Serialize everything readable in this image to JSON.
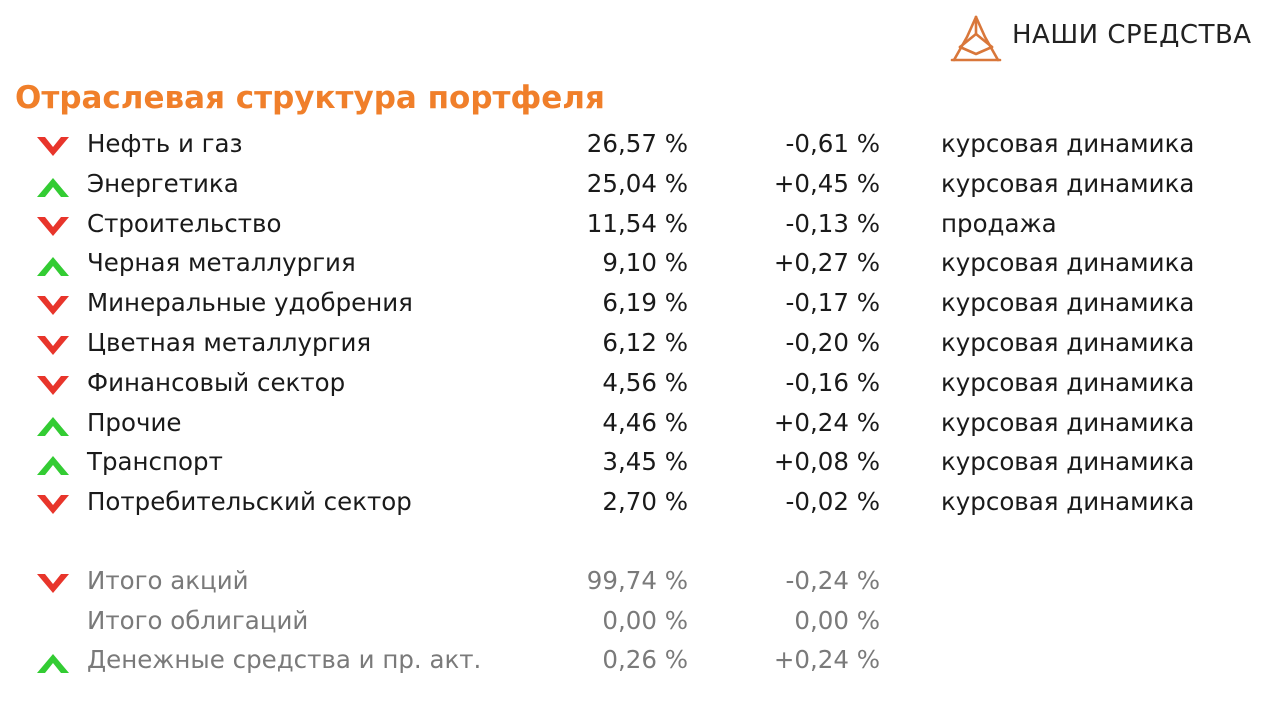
{
  "header": {
    "brand": "НАШИ СРЕДСТВА"
  },
  "title": "Отраслевая структура портфеля",
  "colors": {
    "title": "#f07f2a",
    "up": "#33cc33",
    "down": "#e8352b",
    "totals_text": "#7a7a7a"
  },
  "sectors": [
    {
      "name": "Нефть и газ",
      "share": "26,57 %",
      "change": "-0,61 %",
      "reason": "курсовая динамика",
      "trend": "down"
    },
    {
      "name": "Энергетика",
      "share": "25,04 %",
      "change": "+0,45 %",
      "reason": "курсовая динамика",
      "trend": "up"
    },
    {
      "name": "Строительство",
      "share": "11,54 %",
      "change": "-0,13 %",
      "reason": "продажа",
      "trend": "down"
    },
    {
      "name": "Черная металлургия",
      "share": "9,10 %",
      "change": "+0,27 %",
      "reason": "курсовая динамика",
      "trend": "up"
    },
    {
      "name": "Минеральные удобрения",
      "share": "6,19 %",
      "change": "-0,17 %",
      "reason": "курсовая динамика",
      "trend": "down"
    },
    {
      "name": "Цветная металлургия",
      "share": "6,12 %",
      "change": "-0,20 %",
      "reason": "курсовая динамика",
      "trend": "down"
    },
    {
      "name": "Финансовый сектор",
      "share": "4,56 %",
      "change": "-0,16 %",
      "reason": "курсовая динамика",
      "trend": "down"
    },
    {
      "name": "Прочие",
      "share": "4,46 %",
      "change": "+0,24 %",
      "reason": "курсовая динамика",
      "trend": "up"
    },
    {
      "name": "Транспорт",
      "share": "3,45 %",
      "change": "+0,08 %",
      "reason": "курсовая динамика",
      "trend": "up"
    },
    {
      "name": "Потребительский сектор",
      "share": "2,70 %",
      "change": "-0,02 %",
      "reason": "курсовая динамика",
      "trend": "down"
    }
  ],
  "totals": [
    {
      "name": "Итого акций",
      "share": "99,74 %",
      "change": "-0,24 %",
      "trend": "down"
    },
    {
      "name": "Итого облигаций",
      "share": "0,00 %",
      "change": "0,00 %",
      "trend": "none"
    },
    {
      "name": "Денежные средства и пр. акт.",
      "share": "0,26 %",
      "change": "+0,24 %",
      "trend": "up"
    }
  ]
}
